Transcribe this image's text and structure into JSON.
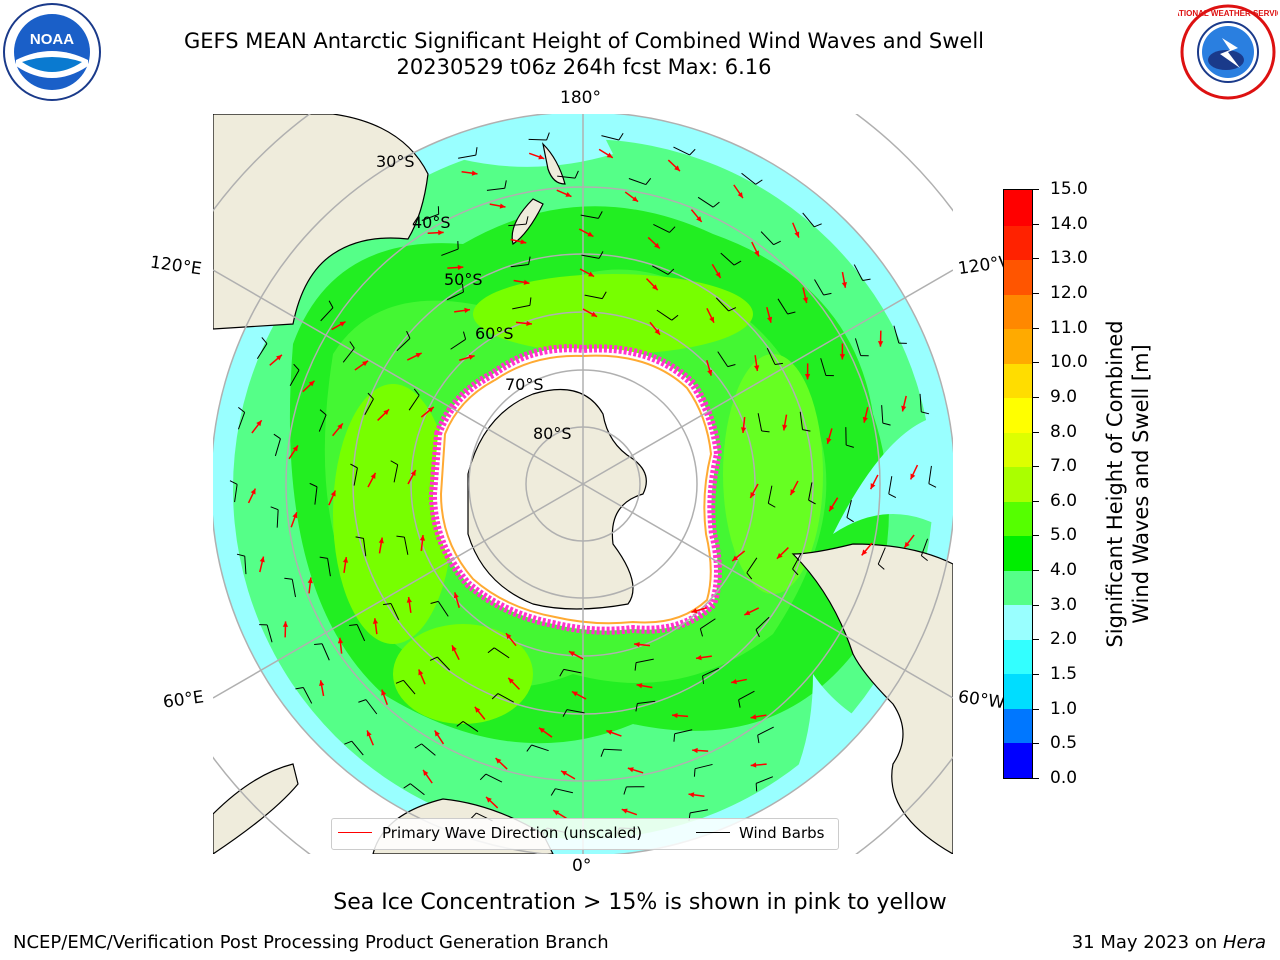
{
  "header": {
    "title_line1": "GEFS MEAN Antarctic Significant Height of Combined Wind Waves and Swell",
    "title_line2": "20230529 t06z 264h fcst   Max: 6.16"
  },
  "logos": {
    "left": {
      "icon": "noaa-logo",
      "text": "NOAA"
    },
    "right": {
      "icon": "nws-logo",
      "text": "NATIONAL WEATHER SERVICE"
    }
  },
  "map": {
    "projection": "south-polar-stereographic",
    "longitude_labels": {
      "top": "180°",
      "bottom": "0°",
      "upper_left": "120°E",
      "lower_left": "60°E",
      "upper_right": "120°W",
      "lower_right": "60°W"
    },
    "latitude_labels": [
      "30°S",
      "40°S",
      "50°S",
      "60°S",
      "70°S",
      "80°S"
    ],
    "colors": {
      "land": "#efecdc",
      "ice": "#ffffff",
      "ice_edge": "#ff33cc",
      "ocean_low": "#99ffff",
      "ocean_mid": "#55ff88",
      "ocean_high": "#22ee22",
      "ocean_peak": "#77ff00",
      "grid": "#b0b0b0",
      "wave_arrow": "#ff0000",
      "wind_barb": "#000000"
    }
  },
  "legend": {
    "items": [
      {
        "label": "Primary Wave Direction (unscaled)",
        "color": "#ff0000"
      },
      {
        "label": "Wind Barbs",
        "color": "#000000"
      }
    ]
  },
  "colorbar": {
    "title_line1": "Significant Height of Combined",
    "title_line2": "Wind Waves and Swell [m]",
    "tick_labels": [
      "0.0",
      "0.5",
      "1.0",
      "1.5",
      "2.0",
      "3.0",
      "4.0",
      "5.0",
      "6.0",
      "7.0",
      "8.0",
      "9.0",
      "10.0",
      "11.0",
      "12.0",
      "13.0",
      "14.0",
      "15.0"
    ],
    "colors": [
      "#0000ff",
      "#0077ff",
      "#00ddff",
      "#33ffff",
      "#99ffff",
      "#55ff88",
      "#00ee00",
      "#55ff00",
      "#aaff00",
      "#ddff00",
      "#ffff00",
      "#ffdd00",
      "#ffaa00",
      "#ff8800",
      "#ff5500",
      "#ff2200",
      "#ff0000"
    ]
  },
  "footer": {
    "note": "Sea Ice Concentration > 15% is shown in pink to yellow",
    "left": "NCEP/EMC/Verification Post Processing Product Generation Branch",
    "right_prefix": "31 May 2023 on ",
    "right_host": "Hera"
  }
}
